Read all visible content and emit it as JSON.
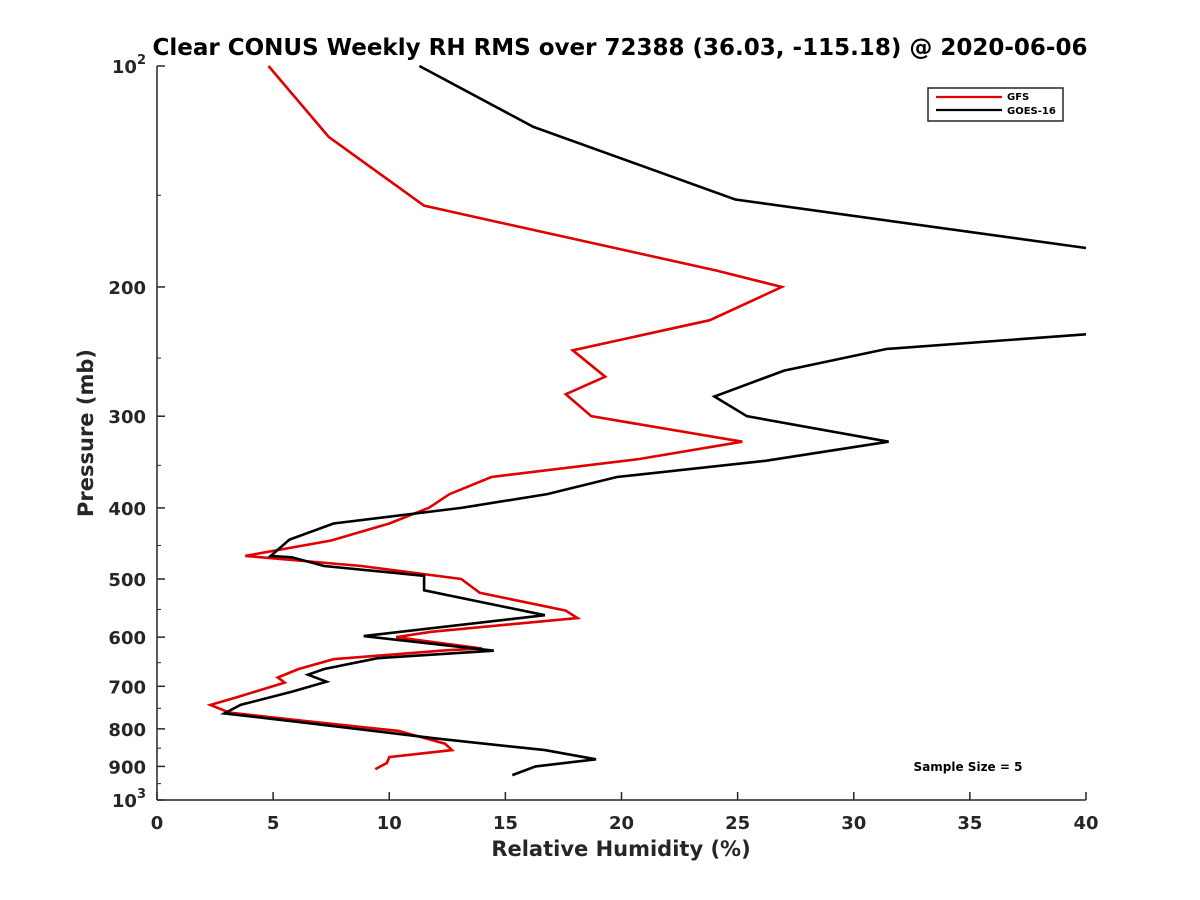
{
  "chart_data": {
    "type": "line",
    "title": "Clear CONUS Weekly RH RMS over 72388 (36.03, -115.18) @ 2020-06-06",
    "xlabel": "Relative Humidity (%)",
    "ylabel": "Pressure (mb)",
    "xlim": [
      0,
      40
    ],
    "ylim": [
      100,
      1000
    ],
    "y_scale": "log",
    "y_reversed": true,
    "x_ticks": [
      "0",
      "5",
      "10",
      "15",
      "20",
      "25",
      "30",
      "35",
      "40"
    ],
    "y_ticks": [
      {
        "value": 100,
        "base": "10",
        "exp": "2"
      },
      {
        "value": 200,
        "label": "200"
      },
      {
        "value": 300,
        "label": "300"
      },
      {
        "value": 400,
        "label": "400"
      },
      {
        "value": 500,
        "label": "500"
      },
      {
        "value": 600,
        "label": "600"
      },
      {
        "value": 700,
        "label": "700"
      },
      {
        "value": 800,
        "label": "800"
      },
      {
        "value": 900,
        "label": "900"
      },
      {
        "value": 1000,
        "base": "10",
        "exp": "3"
      }
    ],
    "legend_position": "top-right",
    "annotation": "Sample Size = 5",
    "series": [
      {
        "name": "GFS",
        "color": "#e00000",
        "points": [
          [
            4.8,
            100
          ],
          [
            7.4,
            125
          ],
          [
            11.5,
            155
          ],
          [
            24.1,
            190
          ],
          [
            26.9,
            200
          ],
          [
            23.8,
            222
          ],
          [
            17.9,
            244
          ],
          [
            19.3,
            265
          ],
          [
            17.6,
            280
          ],
          [
            18.7,
            300
          ],
          [
            25.2,
            325
          ],
          [
            20.8,
            343
          ],
          [
            14.4,
            363
          ],
          [
            12.6,
            383
          ],
          [
            11.7,
            400
          ],
          [
            10.0,
            420
          ],
          [
            7.5,
            443
          ],
          [
            3.8,
            465
          ],
          [
            8.8,
            480
          ],
          [
            13.1,
            500
          ],
          [
            13.9,
            522
          ],
          [
            17.6,
            552
          ],
          [
            18.1,
            565
          ],
          [
            11.8,
            590
          ],
          [
            10.3,
            600
          ],
          [
            14.0,
            622
          ],
          [
            12.5,
            625
          ],
          [
            7.6,
            643
          ],
          [
            6.1,
            663
          ],
          [
            5.2,
            681
          ],
          [
            5.5,
            692
          ],
          [
            3.4,
            725
          ],
          [
            2.3,
            742
          ],
          [
            3.1,
            760
          ],
          [
            6.3,
            780
          ],
          [
            10.4,
            805
          ],
          [
            12.4,
            838
          ],
          [
            12.7,
            855
          ],
          [
            10.0,
            874
          ],
          [
            9.9,
            890
          ],
          [
            9.4,
            908
          ]
        ]
      },
      {
        "name": "GOES-16",
        "color": "#000000",
        "points": [
          [
            11.3,
            100
          ],
          [
            16.2,
            121
          ],
          [
            24.9,
            152
          ],
          [
            40.0,
            177
          ],
          [
            null,
            null
          ],
          [
            40.0,
            232
          ],
          [
            31.4,
            243
          ],
          [
            27.0,
            260
          ],
          [
            24.0,
            282
          ],
          [
            25.4,
            300
          ],
          [
            31.5,
            325
          ],
          [
            26.2,
            345
          ],
          [
            19.8,
            363
          ],
          [
            16.8,
            383
          ],
          [
            13.1,
            400
          ],
          [
            7.6,
            420
          ],
          [
            5.7,
            442
          ],
          [
            4.9,
            465
          ],
          [
            5.8,
            467
          ],
          [
            7.2,
            480
          ],
          [
            11.5,
            495
          ],
          [
            11.5,
            518
          ],
          [
            16.7,
            560
          ],
          [
            8.9,
            598
          ],
          [
            14.5,
            626
          ],
          [
            9.5,
            641
          ],
          [
            7.2,
            663
          ],
          [
            6.5,
            675
          ],
          [
            7.3,
            690
          ],
          [
            5.8,
            712
          ],
          [
            3.6,
            742
          ],
          [
            2.9,
            762
          ],
          [
            6.4,
            785
          ],
          [
            12.1,
            825
          ],
          [
            16.7,
            855
          ],
          [
            18.9,
            880
          ],
          [
            16.3,
            900
          ],
          [
            15.3,
            925
          ]
        ]
      }
    ]
  }
}
